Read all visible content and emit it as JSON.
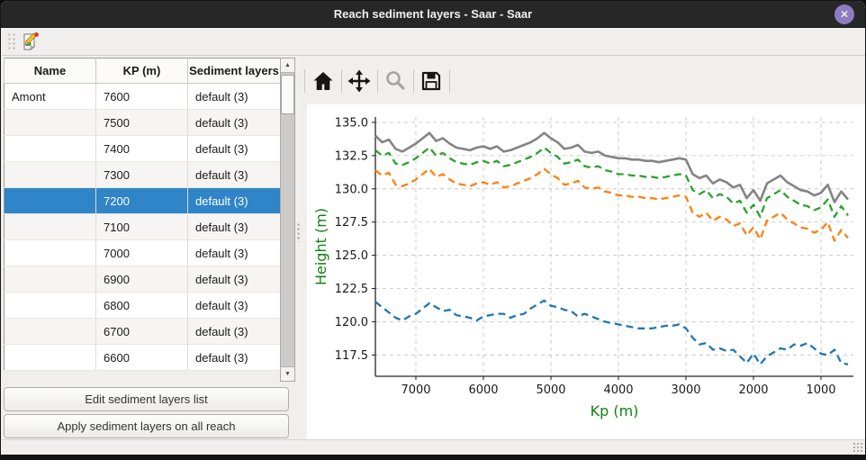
{
  "window": {
    "title": "Reach sediment layers - Saar - Saar",
    "close_glyph": "✕"
  },
  "main_toolbar": {
    "buttons": [
      {
        "icon": "edit-sediment-layers-icon"
      }
    ]
  },
  "table": {
    "headers": [
      "Name",
      "KP (m)",
      "Sediment layers"
    ],
    "selected_index": 4,
    "rows": [
      {
        "name": "Amont",
        "kp": "7600",
        "layers": "default (3)"
      },
      {
        "name": "",
        "kp": "7500",
        "layers": "default (3)"
      },
      {
        "name": "",
        "kp": "7400",
        "layers": "default (3)"
      },
      {
        "name": "",
        "kp": "7300",
        "layers": "default (3)"
      },
      {
        "name": "",
        "kp": "7200",
        "layers": "default (3)"
      },
      {
        "name": "",
        "kp": "7100",
        "layers": "default (3)"
      },
      {
        "name": "",
        "kp": "7000",
        "layers": "default (3)"
      },
      {
        "name": "",
        "kp": "6900",
        "layers": "default (3)"
      },
      {
        "name": "",
        "kp": "6800",
        "layers": "default (3)"
      },
      {
        "name": "",
        "kp": "6700",
        "layers": "default (3)"
      },
      {
        "name": "",
        "kp": "6600",
        "layers": "default (3)"
      }
    ]
  },
  "buttons": {
    "edit": "Edit sediment layers list",
    "apply": "Apply sediment layers on all reach"
  },
  "plot_toolbar": {
    "buttons": [
      {
        "icon": "home-icon",
        "disabled": false
      },
      {
        "icon": "pan-icon",
        "disabled": false
      },
      {
        "icon": "zoom-icon",
        "disabled": true
      },
      {
        "icon": "save-icon",
        "disabled": false
      }
    ]
  },
  "chart_data": {
    "type": "line",
    "title": "",
    "xlabel": "Kp (m)",
    "ylabel": "Height (m)",
    "axis_label_color": "#128012",
    "x_reversed": true,
    "xlim": [
      7600,
      520
    ],
    "ylim": [
      135.4,
      115.9
    ],
    "xticks": [
      7000,
      6000,
      5000,
      4000,
      3000,
      2000,
      1000
    ],
    "yticks": [
      135.0,
      132.5,
      130.0,
      127.5,
      125.0,
      122.5,
      120.0,
      117.5
    ],
    "grid": true,
    "legend": "none",
    "x": [
      7600,
      7500,
      7400,
      7300,
      7200,
      7100,
      7000,
      6900,
      6800,
      6700,
      6600,
      6500,
      6400,
      6300,
      6200,
      6100,
      6000,
      5900,
      5800,
      5700,
      5600,
      5500,
      5400,
      5300,
      5200,
      5100,
      5000,
      4900,
      4800,
      4700,
      4600,
      4500,
      4400,
      4300,
      4200,
      4100,
      4000,
      3900,
      3800,
      3700,
      3600,
      3500,
      3400,
      3300,
      3200,
      3100,
      3000,
      2900,
      2800,
      2700,
      2600,
      2500,
      2400,
      2300,
      2200,
      2100,
      2000,
      1900,
      1800,
      1700,
      1600,
      1500,
      1400,
      1300,
      1200,
      1100,
      1000,
      900,
      800,
      700,
      600
    ],
    "series": [
      {
        "name": "series-gray",
        "color": "#848484",
        "style": "solid",
        "width": 2.6,
        "values": [
          134.0,
          133.5,
          133.7,
          133.0,
          132.8,
          133.1,
          133.4,
          133.8,
          134.2,
          133.6,
          133.8,
          133.4,
          133.1,
          133.0,
          132.9,
          133.1,
          133.2,
          133.0,
          133.2,
          132.8,
          132.9,
          133.1,
          133.3,
          133.5,
          133.8,
          134.2,
          133.8,
          133.5,
          133.0,
          133.1,
          133.3,
          132.8,
          132.7,
          132.8,
          132.5,
          132.4,
          132.3,
          132.3,
          132.2,
          132.2,
          132.1,
          132.1,
          132.0,
          132.1,
          132.2,
          132.3,
          132.2,
          131.1,
          130.8,
          131.0,
          130.4,
          130.7,
          130.5,
          130.1,
          130.3,
          129.3,
          129.9,
          129.1,
          130.4,
          130.7,
          131.0,
          130.5,
          130.2,
          129.9,
          129.8,
          129.5,
          129.7,
          130.3,
          129.0,
          129.8,
          129.2
        ]
      },
      {
        "name": "series-green",
        "color": "#2ca02c",
        "style": "dashed",
        "width": 2.3,
        "values": [
          132.9,
          132.5,
          132.7,
          131.9,
          131.8,
          132.0,
          132.3,
          132.7,
          133.1,
          132.5,
          132.7,
          132.3,
          132.0,
          131.9,
          131.8,
          132.0,
          132.1,
          131.9,
          132.1,
          131.7,
          131.8,
          132.0,
          132.2,
          132.4,
          132.7,
          133.1,
          132.7,
          132.4,
          131.9,
          132.0,
          132.2,
          131.7,
          131.6,
          131.7,
          131.4,
          131.3,
          131.1,
          131.1,
          131.0,
          131.0,
          130.9,
          130.9,
          130.8,
          130.9,
          131.0,
          131.1,
          131.0,
          129.9,
          129.6,
          129.9,
          129.3,
          129.6,
          129.4,
          128.9,
          129.1,
          128.2,
          128.8,
          127.9,
          129.3,
          129.6,
          129.9,
          129.4,
          129.1,
          128.8,
          128.7,
          128.4,
          128.6,
          129.2,
          127.9,
          128.7,
          128.0
        ]
      },
      {
        "name": "series-orange",
        "color": "#ff7f0e",
        "style": "dashed",
        "width": 2.3,
        "values": [
          131.4,
          131.0,
          131.2,
          130.3,
          130.2,
          130.4,
          130.7,
          131.1,
          131.5,
          130.9,
          131.1,
          130.7,
          130.4,
          130.3,
          130.2,
          130.4,
          130.5,
          130.3,
          130.5,
          130.1,
          130.2,
          130.4,
          130.6,
          130.8,
          131.1,
          131.5,
          131.1,
          130.8,
          130.3,
          130.4,
          130.6,
          130.1,
          130.0,
          130.1,
          129.8,
          129.7,
          129.5,
          129.5,
          129.4,
          129.4,
          129.3,
          129.3,
          129.2,
          129.3,
          129.4,
          129.5,
          129.4,
          128.2,
          127.9,
          128.2,
          127.6,
          127.9,
          127.7,
          127.2,
          127.4,
          126.5,
          127.1,
          126.2,
          127.6,
          127.9,
          128.2,
          127.7,
          127.4,
          127.1,
          127.0,
          126.7,
          126.9,
          127.5,
          126.1,
          126.9,
          126.3
        ]
      },
      {
        "name": "series-blue",
        "color": "#1f77b4",
        "style": "dashed",
        "width": 2.3,
        "values": [
          121.5,
          121.1,
          120.7,
          120.3,
          120.1,
          120.4,
          120.6,
          121.0,
          121.4,
          121.1,
          120.8,
          120.9,
          120.5,
          120.4,
          120.3,
          120.1,
          120.4,
          120.5,
          120.6,
          120.6,
          120.3,
          120.5,
          120.6,
          121.0,
          121.3,
          121.6,
          121.2,
          121.1,
          120.9,
          120.8,
          120.4,
          120.6,
          120.4,
          120.2,
          120.0,
          119.9,
          119.8,
          119.7,
          119.6,
          119.5,
          119.5,
          119.5,
          119.6,
          119.7,
          119.7,
          119.8,
          119.5,
          118.8,
          118.3,
          118.4,
          117.9,
          118.0,
          117.8,
          117.9,
          117.4,
          116.9,
          117.6,
          116.8,
          117.4,
          117.7,
          118.0,
          117.9,
          118.3,
          118.2,
          118.4,
          118.0,
          117.6,
          117.5,
          117.9,
          116.9,
          116.8
        ]
      }
    ]
  }
}
